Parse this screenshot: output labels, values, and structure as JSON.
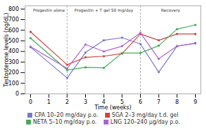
{
  "chart_data": {
    "type": "line",
    "xlabel": "Time (weeks)",
    "ylabel": "Testosterone levels (ng/dL)",
    "xlim": [
      -0.3,
      9.3
    ],
    "ylim": [
      0,
      830
    ],
    "xticks": [
      0,
      1,
      2,
      3,
      4,
      5,
      6,
      7,
      8,
      9
    ],
    "yticks": [
      0,
      100,
      200,
      300,
      400,
      500,
      600,
      700,
      800
    ],
    "x": [
      0,
      2,
      3,
      4,
      5,
      6,
      7,
      8,
      9
    ],
    "series": [
      {
        "name": "CPA 10–20 mg/day p.o.",
        "color": "#7777cc",
        "values": [
          440,
          150,
          390,
          505,
          530,
          470,
          205,
          450,
          475
        ]
      },
      {
        "name": "SGA 2–3 mg/day t.d. gel",
        "color": "#cc4444",
        "values": [
          585,
          275,
          345,
          355,
          380,
          565,
          505,
          565,
          565
        ]
      },
      {
        "name": "NETA 5–10 mg/day p.o.",
        "color": "#44aa55",
        "values": [
          525,
          225,
          250,
          245,
          385,
          385,
          455,
          610,
          650
        ]
      },
      {
        "name": "LNG 120–240 μg/day p.o.",
        "color": "#aa66cc",
        "values": [
          445,
          240,
          465,
          400,
          450,
          575,
          330,
          450,
          480
        ]
      }
    ],
    "marker": "square",
    "vlines": [
      2,
      6
    ],
    "annotations": [
      {
        "text": "Progestin alone",
        "x": 1.0,
        "y": 800
      },
      {
        "text": "Progestin + T gel 50 mg/day",
        "x": 4.0,
        "y": 800
      },
      {
        "text": "Recovery",
        "x": 7.65,
        "y": 800
      }
    ],
    "legend": "bottom",
    "grid": false
  }
}
